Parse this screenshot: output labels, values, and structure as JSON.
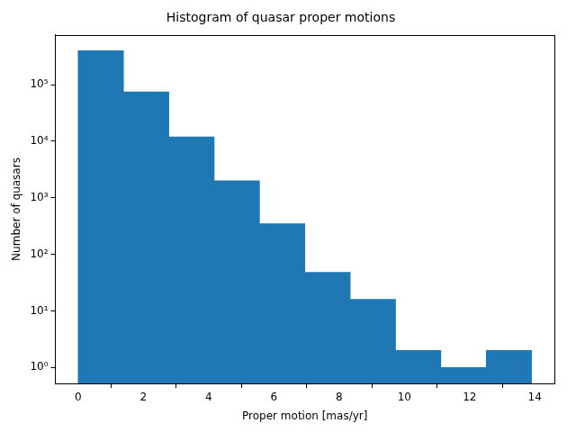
{
  "chart_data": {
    "type": "histogram",
    "title": "Histogram of quasar proper motions",
    "x_label": "Proper motion [mas/yr]",
    "y_label": "Number of quasars",
    "bins": [
      0,
      1.39,
      2.78,
      4.17,
      5.56,
      6.95,
      8.34,
      9.73,
      11.12,
      12.51,
      13.9
    ],
    "values": [
      400000,
      75000,
      12000,
      2000,
      350,
      48,
      16,
      2,
      1,
      2
    ],
    "color": "#1f77b4",
    "log": "y",
    "xlim": [
      -0.7,
      14.6
    ],
    "xticks": [
      0,
      2,
      4,
      6,
      8,
      10,
      12,
      14
    ],
    "ylim": [
      0.52,
      760000
    ],
    "yticks": [
      {
        "value": 1,
        "label": "10⁰"
      },
      {
        "value": 10,
        "label": "10¹"
      },
      {
        "value": 100,
        "label": "10²"
      },
      {
        "value": 1000,
        "label": "10³"
      },
      {
        "value": 10000,
        "label": "10⁴"
      },
      {
        "value": 100000,
        "label": "10⁵"
      }
    ],
    "grid": false
  }
}
